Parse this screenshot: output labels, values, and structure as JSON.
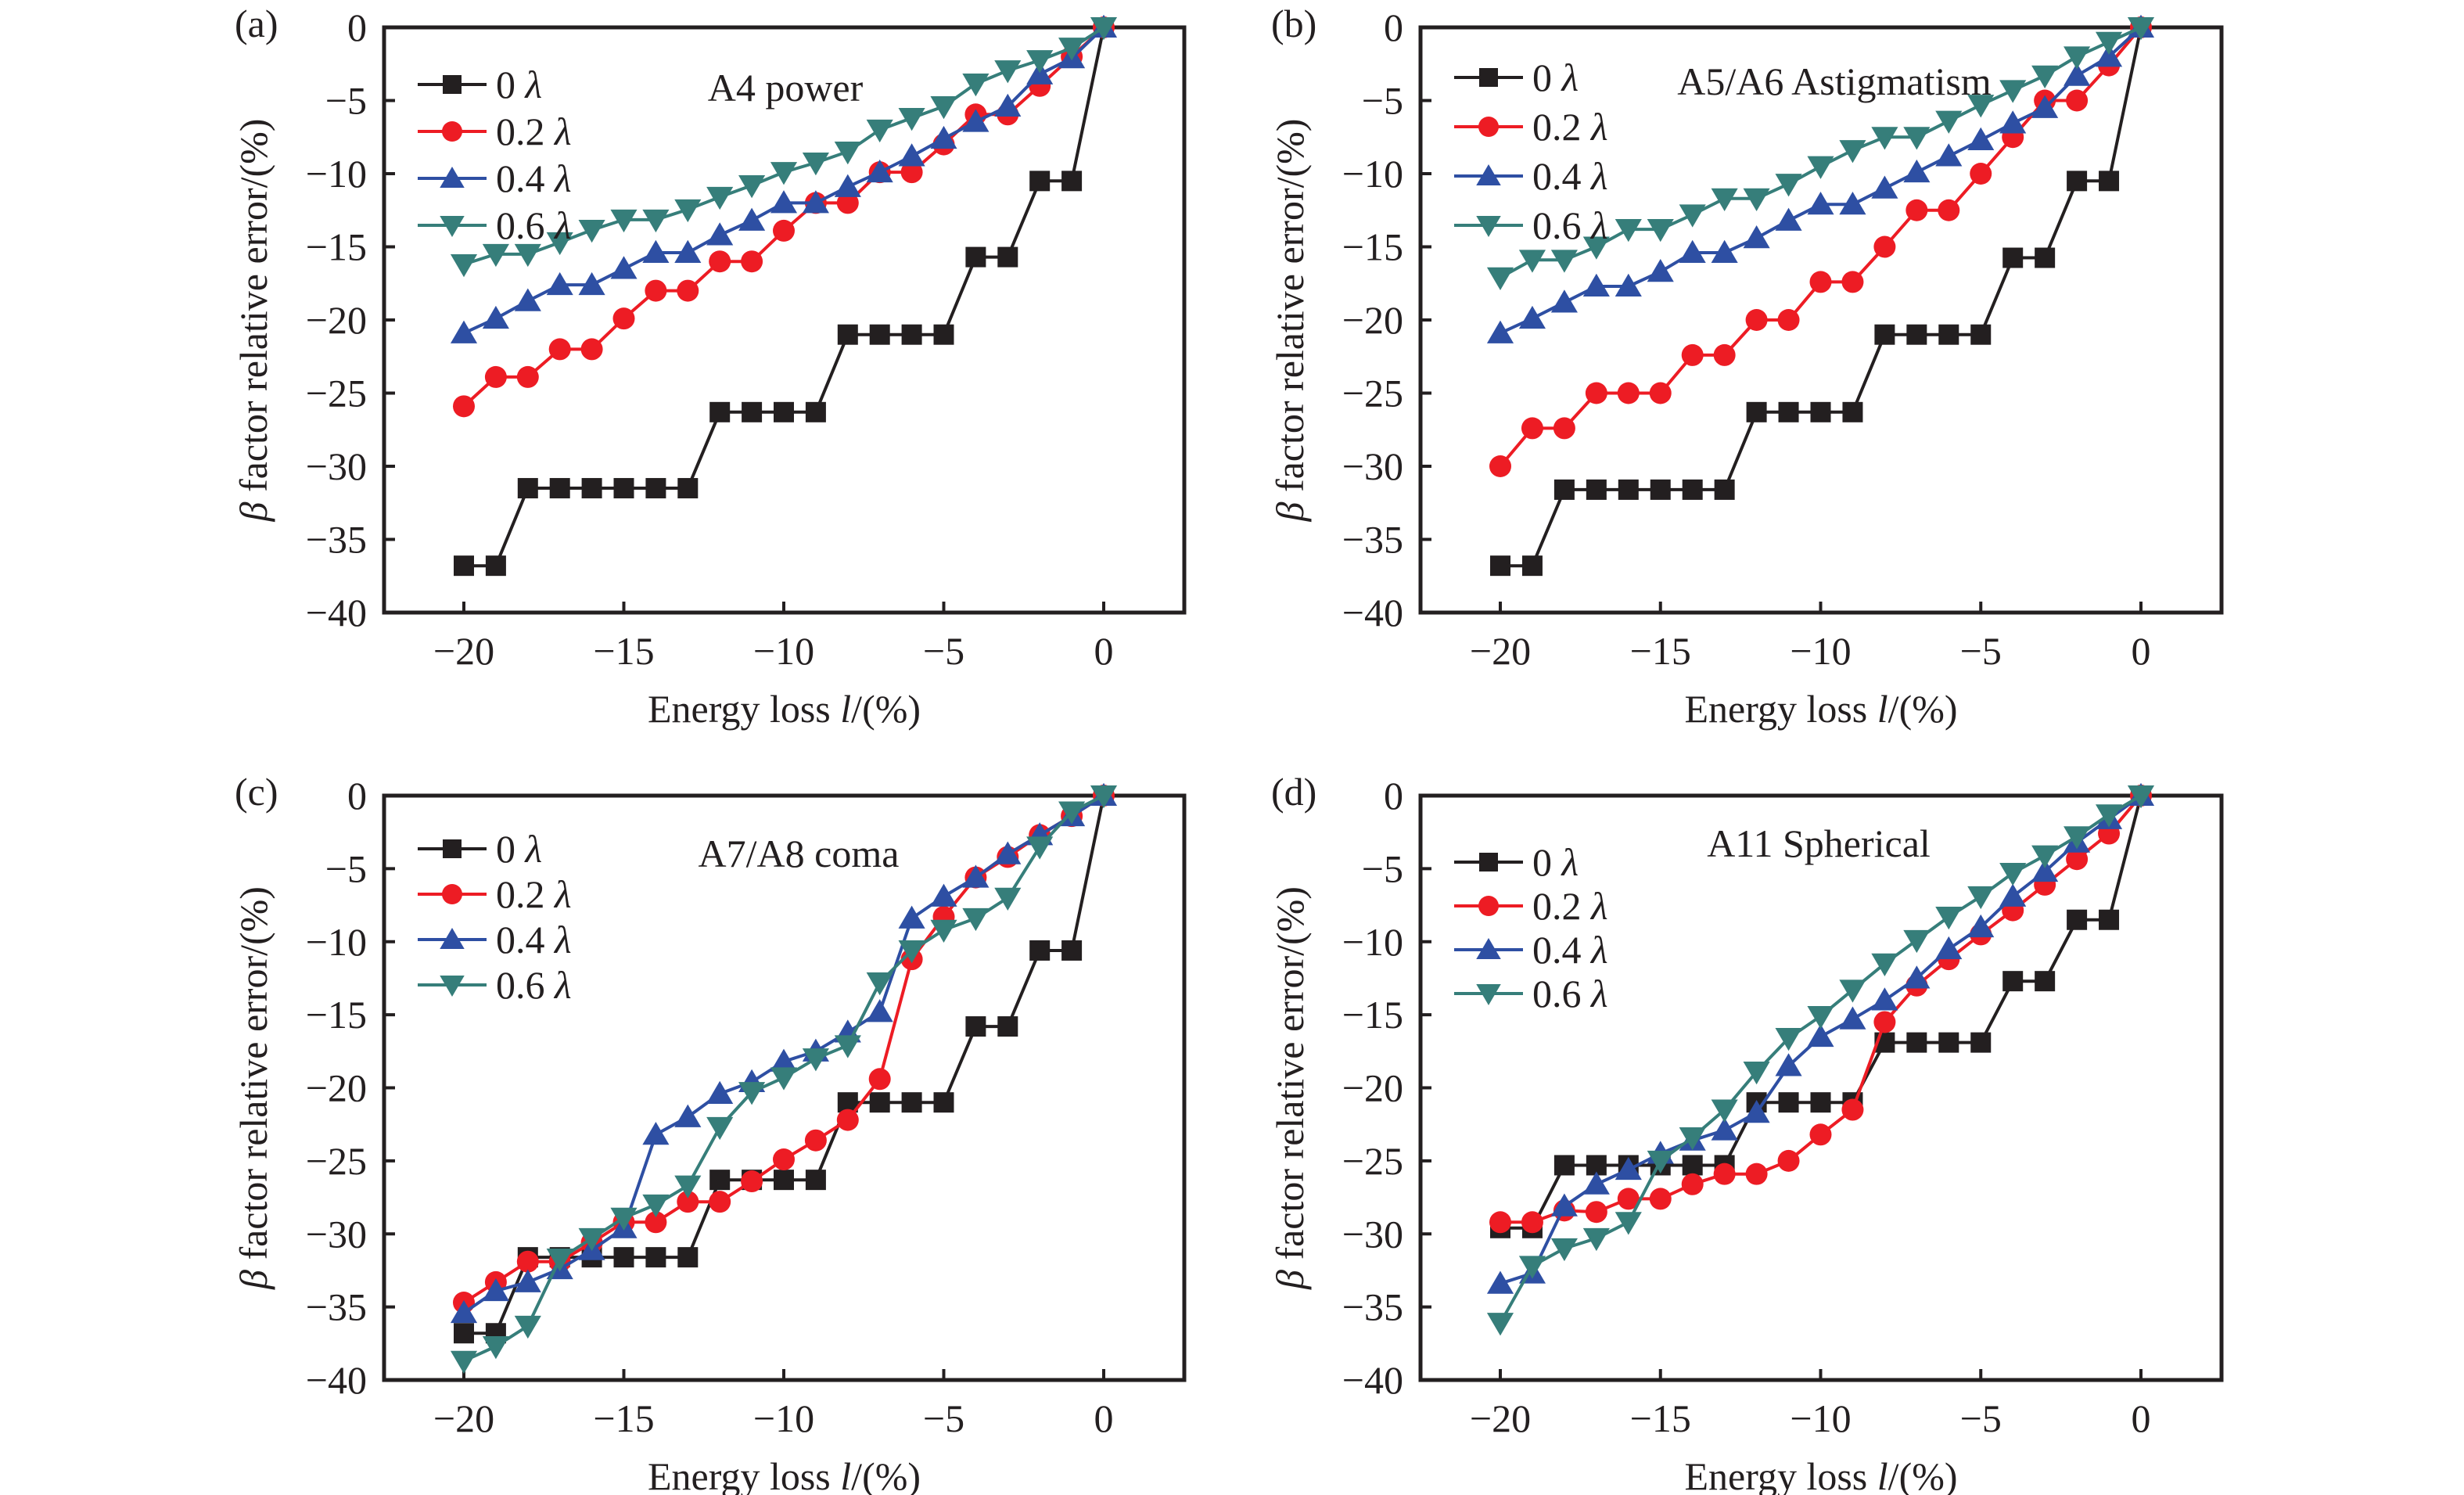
{
  "figure": {
    "panels": [
      "(a)",
      "(b)",
      "(c)",
      "(d)"
    ]
  },
  "chart_data": [
    {
      "type": "line",
      "panel_label": "(a)",
      "title": "A4 power",
      "xlabel": "Energy loss l/(%)",
      "xlabel_parts": {
        "prefix": "Energy loss ",
        "italic": "l",
        "suffix": "/(%)"
      },
      "ylabel": "β factor relative error/(%)",
      "ylabel_parts": {
        "italic": "β",
        "suffix": " factor relative error/(%)"
      },
      "xlim": [
        -22.5,
        2.5
      ],
      "ylim": [
        -40,
        0
      ],
      "xticks": [
        -20,
        -15,
        -10,
        -5,
        0
      ],
      "xtick_labels": [
        "−20",
        "−15",
        "−10",
        "−5",
        "0"
      ],
      "yticks": [
        0,
        -5,
        -10,
        -15,
        -20,
        -25,
        -30,
        -35,
        -40
      ],
      "ytick_labels": [
        "0",
        "−5",
        "−10",
        "−15",
        "−20",
        "−25",
        "−30",
        "−35",
        "−40"
      ],
      "grid": false,
      "legend_position": "top-left",
      "x": [
        -20,
        -19,
        -18,
        -17,
        -16,
        -15,
        -14,
        -13,
        -12,
        -11,
        -10,
        -9,
        -8,
        -7,
        -6,
        -5,
        -4,
        -3,
        -2,
        -1,
        0
      ],
      "series": [
        {
          "name": "0 λ",
          "label_num": "0",
          "color": "#231f20",
          "marker": "square",
          "values": [
            -36.8,
            -36.8,
            -31.5,
            -31.5,
            -31.5,
            -31.5,
            -31.5,
            -31.5,
            -26.3,
            -26.3,
            -26.3,
            -26.3,
            -21.0,
            -21.0,
            -21.0,
            -21.0,
            -15.7,
            -15.7,
            -10.5,
            -10.5,
            0
          ]
        },
        {
          "name": "0.2 λ",
          "label_num": "0.2",
          "color": "#ed1c24",
          "marker": "circle",
          "values": [
            -25.9,
            -23.9,
            -23.9,
            -22.0,
            -22.0,
            -19.9,
            -18.0,
            -18.0,
            -16.0,
            -16.0,
            -13.9,
            -12.0,
            -12.0,
            -9.9,
            -9.9,
            -8.0,
            -5.95,
            -5.95,
            -4.0,
            -2.0,
            0
          ]
        },
        {
          "name": "0.4 λ",
          "label_num": "0.4",
          "color": "#2e4fa3",
          "marker": "triangle-up",
          "values": [
            -20.9,
            -19.9,
            -18.7,
            -17.6,
            -17.6,
            -16.5,
            -15.4,
            -15.4,
            -14.2,
            -13.2,
            -12.0,
            -12.0,
            -10.9,
            -9.9,
            -8.8,
            -7.6,
            -6.45,
            -5.4,
            -3.2,
            -2.1,
            0
          ]
        },
        {
          "name": "0.6 λ",
          "label_num": "0.6",
          "color": "#367e7a",
          "marker": "triangle-down",
          "values": [
            -16.2,
            -15.5,
            -15.5,
            -14.7,
            -13.85,
            -13.15,
            -13.15,
            -12.45,
            -11.6,
            -10.8,
            -9.9,
            -9.25,
            -8.5,
            -7.0,
            -6.2,
            -5.4,
            -3.85,
            -2.95,
            -2.25,
            -1.4,
            0
          ]
        }
      ]
    },
    {
      "type": "line",
      "panel_label": "(b)",
      "title": "A5/A6 Astigmatism",
      "xlabel": "Energy loss l/(%)",
      "xlabel_parts": {
        "prefix": "Energy loss ",
        "italic": "l",
        "suffix": "/(%)"
      },
      "ylabel": "β factor relative error/(%)",
      "ylabel_parts": {
        "italic": "β",
        "suffix": " factor relative error/(%)"
      },
      "xlim": [
        -22.5,
        2.5
      ],
      "ylim": [
        -40,
        0
      ],
      "xticks": [
        -20,
        -15,
        -10,
        -5,
        0
      ],
      "xtick_labels": [
        "−20",
        "−15",
        "−10",
        "−5",
        "0"
      ],
      "yticks": [
        0,
        -5,
        -10,
        -15,
        -20,
        -25,
        -30,
        -35,
        -40
      ],
      "ytick_labels": [
        "0",
        "−5",
        "−10",
        "−15",
        "−20",
        "−25",
        "−30",
        "−35",
        "−40"
      ],
      "grid": false,
      "legend_position": "top-left",
      "x": [
        -20,
        -19,
        -18,
        -17,
        -16,
        -15,
        -14,
        -13,
        -12,
        -11,
        -10,
        -9,
        -8,
        -7,
        -6,
        -5,
        -4,
        -3,
        -2,
        -1,
        0
      ],
      "series": [
        {
          "name": "0 λ",
          "label_num": "0",
          "color": "#231f20",
          "marker": "square",
          "values": [
            -36.8,
            -36.8,
            -31.6,
            -31.6,
            -31.6,
            -31.6,
            -31.6,
            -31.6,
            -26.3,
            -26.3,
            -26.3,
            -26.3,
            -21.0,
            -21.0,
            -21.0,
            -21.0,
            -15.75,
            -15.75,
            -10.5,
            -10.5,
            0
          ]
        },
        {
          "name": "0.2 λ",
          "label_num": "0.2",
          "color": "#ed1c24",
          "marker": "circle",
          "values": [
            -30.0,
            -27.4,
            -27.4,
            -25.0,
            -25.0,
            -25.0,
            -22.4,
            -22.4,
            -20.0,
            -20.0,
            -17.4,
            -17.4,
            -15.0,
            -12.5,
            -12.5,
            -10.0,
            -7.5,
            -5.0,
            -5.0,
            -2.6,
            0
          ]
        },
        {
          "name": "0.4 λ",
          "label_num": "0.4",
          "color": "#2e4fa3",
          "marker": "triangle-up",
          "values": [
            -20.9,
            -19.9,
            -18.8,
            -17.7,
            -17.7,
            -16.7,
            -15.4,
            -15.4,
            -14.4,
            -13.2,
            -12.1,
            -12.1,
            -11.0,
            -9.9,
            -8.8,
            -7.7,
            -6.55,
            -5.5,
            -3.3,
            -2.0,
            0
          ]
        },
        {
          "name": "0.6 λ",
          "label_num": "0.6",
          "color": "#367e7a",
          "marker": "triangle-down",
          "values": [
            -17.1,
            -15.9,
            -15.9,
            -15.0,
            -13.8,
            -13.8,
            -12.8,
            -11.7,
            -11.7,
            -10.7,
            -9.5,
            -8.4,
            -7.5,
            -7.5,
            -6.4,
            -5.3,
            -4.3,
            -3.3,
            -2.0,
            -1.0,
            0
          ]
        }
      ]
    },
    {
      "type": "line",
      "panel_label": "(c)",
      "title": "A7/A8 coma",
      "xlabel": "Energy loss l/(%)",
      "xlabel_parts": {
        "prefix": "Energy loss ",
        "italic": "l",
        "suffix": "/(%)"
      },
      "ylabel": "β factor relative error/(%)",
      "ylabel_parts": {
        "italic": "β",
        "suffix": " factor relative error/(%)"
      },
      "xlim": [
        -22.5,
        2.5
      ],
      "ylim": [
        -40,
        0
      ],
      "xticks": [
        -20,
        -15,
        -10,
        -5,
        0
      ],
      "xtick_labels": [
        "−20",
        "−15",
        "−10",
        "−5",
        "0"
      ],
      "yticks": [
        0,
        -5,
        -10,
        -15,
        -20,
        -25,
        -30,
        -35,
        -40
      ],
      "ytick_labels": [
        "0",
        "−5",
        "−10",
        "−15",
        "−20",
        "−25",
        "−30",
        "−35",
        "−40"
      ],
      "grid": false,
      "legend_position": "top-left",
      "x": [
        -20,
        -19,
        -18,
        -17,
        -16,
        -15,
        -14,
        -13,
        -12,
        -11,
        -10,
        -9,
        -8,
        -7,
        -6,
        -5,
        -4,
        -3,
        -2,
        -1,
        0
      ],
      "series": [
        {
          "name": "0 λ",
          "label_num": "0",
          "color": "#231f20",
          "marker": "square",
          "values": [
            -36.8,
            -36.8,
            -31.6,
            -31.6,
            -31.6,
            -31.6,
            -31.6,
            -31.6,
            -26.3,
            -26.3,
            -26.3,
            -26.3,
            -21.0,
            -21.0,
            -21.0,
            -21.0,
            -15.8,
            -15.8,
            -10.6,
            -10.6,
            0
          ]
        },
        {
          "name": "0.2 λ",
          "label_num": "0.2",
          "color": "#ed1c24",
          "marker": "circle",
          "values": [
            -34.7,
            -33.3,
            -31.9,
            -31.9,
            -30.6,
            -29.2,
            -29.2,
            -27.8,
            -27.8,
            -26.4,
            -24.9,
            -23.6,
            -22.2,
            -19.4,
            -11.2,
            -8.3,
            -5.6,
            -4.2,
            -2.7,
            -1.4,
            0
          ]
        },
        {
          "name": "0.4 λ",
          "label_num": "0.4",
          "color": "#2e4fa3",
          "marker": "triangle-up",
          "values": [
            -35.4,
            -33.9,
            -33.3,
            -32.4,
            -31.1,
            -29.6,
            -23.2,
            -22.0,
            -20.4,
            -19.6,
            -18.2,
            -17.5,
            -16.2,
            -14.8,
            -8.4,
            -6.9,
            -5.6,
            -4.0,
            -2.7,
            -1.4,
            0
          ]
        },
        {
          "name": "0.6 λ",
          "label_num": "0.6",
          "color": "#367e7a",
          "marker": "triangle-down",
          "values": [
            -38.7,
            -37.7,
            -36.3,
            -31.7,
            -30.3,
            -28.9,
            -28.0,
            -26.7,
            -22.7,
            -20.3,
            -19.3,
            -18.0,
            -17.1,
            -12.8,
            -10.6,
            -9.2,
            -8.4,
            -7.0,
            -3.5,
            -1.1,
            0
          ]
        }
      ]
    },
    {
      "type": "line",
      "panel_label": "(d)",
      "title": "A11 Spherical",
      "xlabel": "Energy loss l/(%)",
      "xlabel_parts": {
        "prefix": "Energy loss ",
        "italic": "l",
        "suffix": "/(%)"
      },
      "ylabel": "β factor relative error/(%)",
      "ylabel_parts": {
        "italic": "β",
        "suffix": " factor relative error/(%)"
      },
      "xlim": [
        -22.5,
        2.5
      ],
      "ylim": [
        -40,
        0
      ],
      "xticks": [
        -20,
        -15,
        -10,
        -5,
        0
      ],
      "xtick_labels": [
        "−20",
        "−15",
        "−10",
        "−5",
        "0"
      ],
      "yticks": [
        0,
        -5,
        -10,
        -15,
        -20,
        -25,
        -30,
        -35,
        -40
      ],
      "ytick_labels": [
        "0",
        "−5",
        "−10",
        "−15",
        "−20",
        "−25",
        "−30",
        "−35",
        "−40"
      ],
      "grid": false,
      "legend_position": "top-left",
      "x": [
        -20,
        -19,
        -18,
        -17,
        -16,
        -15,
        -14,
        -13,
        -12,
        -11,
        -10,
        -9,
        -8,
        -7,
        -6,
        -5,
        -4,
        -3,
        -2,
        -1,
        0
      ],
      "series": [
        {
          "name": "0 λ",
          "label_num": "0",
          "color": "#231f20",
          "marker": "square",
          "values": [
            -29.6,
            -29.6,
            -25.3,
            -25.3,
            -25.3,
            -25.3,
            -25.3,
            -25.3,
            -21.0,
            -21.0,
            -21.0,
            -21.0,
            -16.9,
            -16.9,
            -16.9,
            -16.9,
            -12.7,
            -12.7,
            -8.5,
            -8.5,
            0
          ]
        },
        {
          "name": "0.2 λ",
          "label_num": "0.2",
          "color": "#ed1c24",
          "marker": "circle",
          "values": [
            -29.2,
            -29.2,
            -28.4,
            -28.5,
            -27.6,
            -27.6,
            -26.6,
            -25.9,
            -25.9,
            -25.0,
            -23.2,
            -21.5,
            -15.5,
            -13.0,
            -11.2,
            -9.5,
            -7.85,
            -6.1,
            -4.35,
            -2.6,
            0
          ]
        },
        {
          "name": "0.4 λ",
          "label_num": "0.4",
          "color": "#2e4fa3",
          "marker": "triangle-up",
          "values": [
            -33.4,
            -32.7,
            -28.1,
            -26.6,
            -25.6,
            -24.5,
            -23.6,
            -22.9,
            -21.7,
            -18.5,
            -16.5,
            -15.3,
            -14.0,
            -12.5,
            -10.5,
            -9.0,
            -6.9,
            -5.2,
            -3.2,
            -1.6,
            0
          ]
        },
        {
          "name": "0.6 λ",
          "label_num": "0.6",
          "color": "#367e7a",
          "marker": "triangle-down",
          "values": [
            -36.1,
            -32.2,
            -31.0,
            -30.3,
            -29.2,
            -25.0,
            -23.4,
            -21.5,
            -18.9,
            -16.6,
            -15.1,
            -13.3,
            -11.5,
            -9.9,
            -8.3,
            -6.9,
            -5.3,
            -4.1,
            -2.8,
            -1.3,
            0
          ]
        }
      ]
    }
  ]
}
